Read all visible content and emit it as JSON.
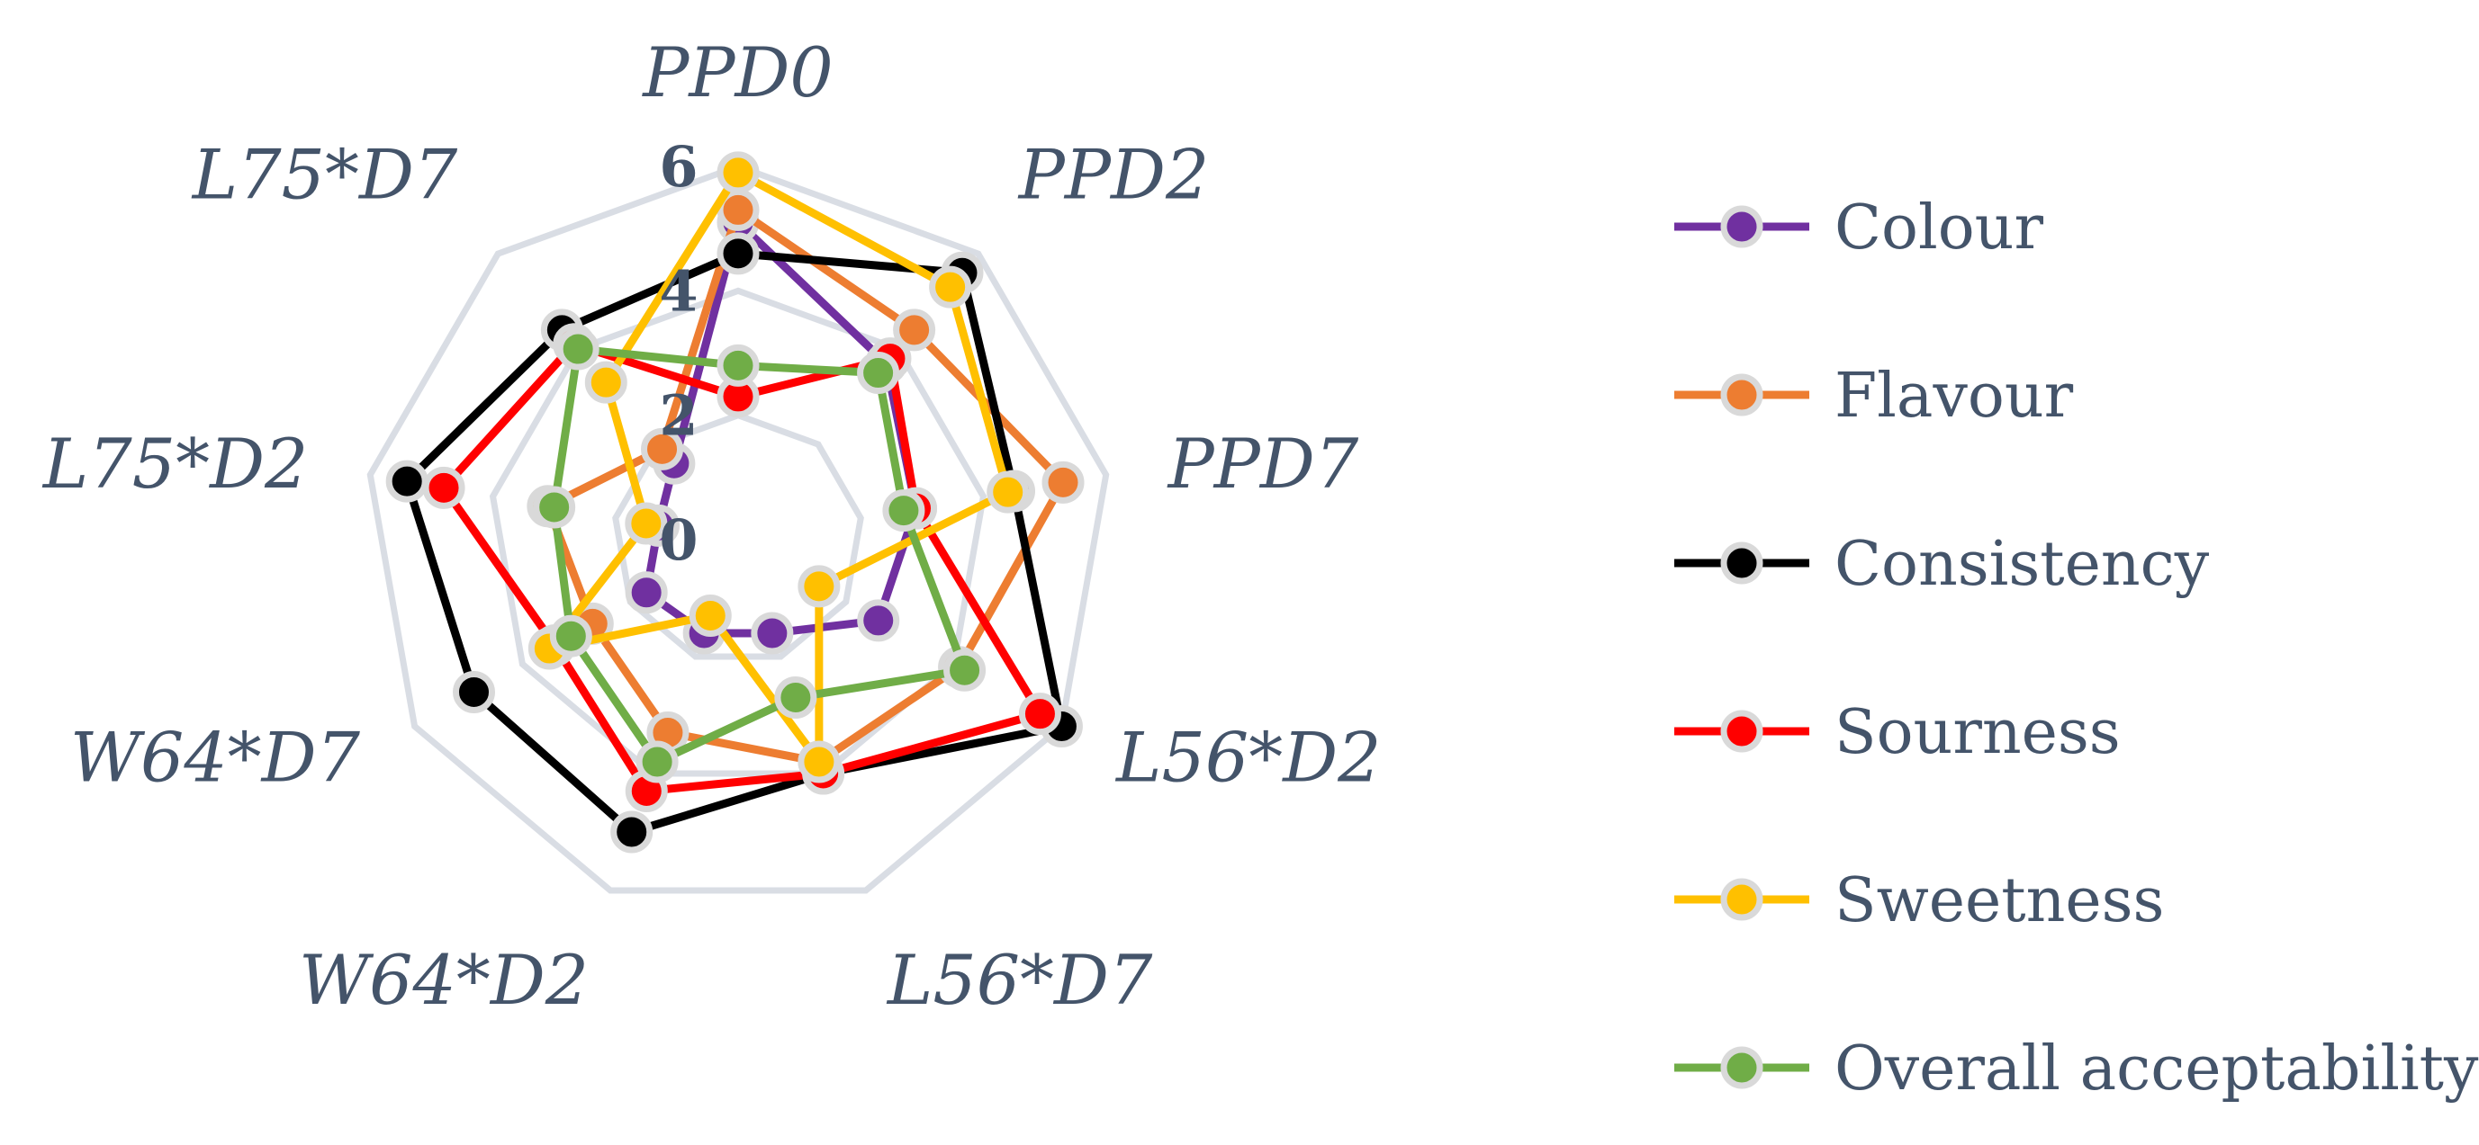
{
  "chart_data": {
    "type": "radar",
    "title": "",
    "categories": [
      "PPD0",
      "PPD2",
      "PPD7",
      "L56*D2",
      "L56*D7",
      "W64*D2",
      "W64*D7",
      "L75*D2",
      "L75*D7"
    ],
    "rlim": [
      0,
      6
    ],
    "ticks": [
      {
        "value": 0,
        "label": "0"
      },
      {
        "value": 2,
        "label": "2"
      },
      {
        "value": 4,
        "label": "4"
      },
      {
        "value": 6,
        "label": "6"
      }
    ],
    "grid": true,
    "legend_position": "right",
    "series": [
      {
        "name": "Colour",
        "color": "#7030a0",
        "values": [
          5.1,
          3.7,
          2.9,
          2.6,
          1.6,
          1.6,
          1.7,
          1.3,
          1.6
        ]
      },
      {
        "name": "Flavour",
        "color": "#ed7d31",
        "values": [
          5.3,
          4.4,
          5.3,
          4.1,
          3.8,
          3.3,
          2.7,
          3.1,
          1.9
        ]
      },
      {
        "name": "Consistency",
        "color": "#000000",
        "values": [
          4.6,
          5.6,
          4.5,
          6.0,
          4.0,
          5.0,
          4.9,
          5.4,
          4.4
        ]
      },
      {
        "name": "Sourness",
        "color": "#ff0000",
        "values": [
          2.3,
          3.8,
          2.9,
          5.6,
          4.0,
          4.3,
          3.4,
          4.8,
          4.1
        ]
      },
      {
        "name": "Sweetness",
        "color": "#ffc000",
        "values": [
          5.9,
          5.3,
          4.4,
          1.5,
          3.8,
          1.3,
          3.5,
          1.5,
          3.3
        ]
      },
      {
        "name": "Overall acceptability",
        "color": "#70ad47",
        "values": [
          2.8,
          3.5,
          2.7,
          4.2,
          2.7,
          3.8,
          3.1,
          3.0,
          4.0
        ]
      }
    ]
  }
}
